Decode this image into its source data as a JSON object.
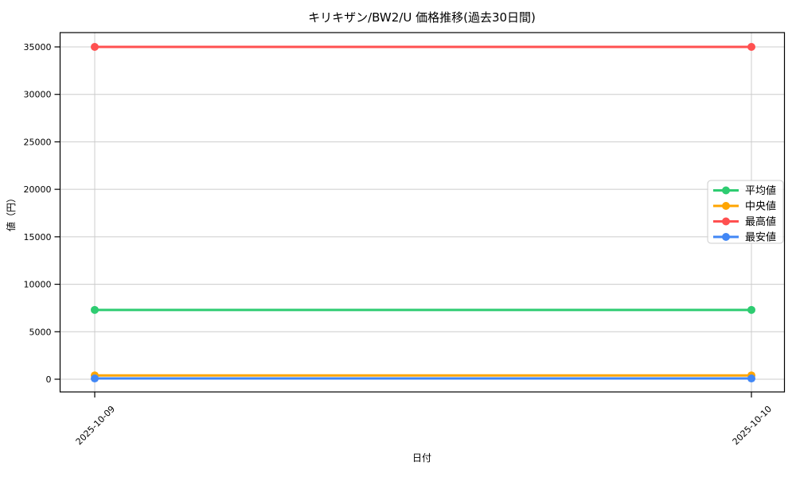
{
  "chart_data": {
    "type": "line",
    "title": "キリキザン/BW2/U 価格推移(過去30日間)",
    "xlabel": "日付",
    "ylabel": "値（円）",
    "x": [
      "2025-10-09",
      "2025-10-10"
    ],
    "series": [
      {
        "name": "平均値",
        "color": "#2ecc71",
        "values": [
          7300,
          7300
        ]
      },
      {
        "name": "中央値",
        "color": "#ffa500",
        "values": [
          400,
          400
        ]
      },
      {
        "name": "最高値",
        "color": "#ff5050",
        "values": [
          35000,
          35000
        ]
      },
      {
        "name": "最安値",
        "color": "#4287f5",
        "values": [
          80,
          80
        ]
      }
    ],
    "yticks": [
      0,
      5000,
      10000,
      15000,
      20000,
      25000,
      30000,
      35000
    ],
    "ylim": [
      -1300,
      36500
    ],
    "grid": true,
    "legend_position": "center right",
    "legend_order": [
      "平均値",
      "中央値",
      "最高値",
      "最安値"
    ]
  }
}
